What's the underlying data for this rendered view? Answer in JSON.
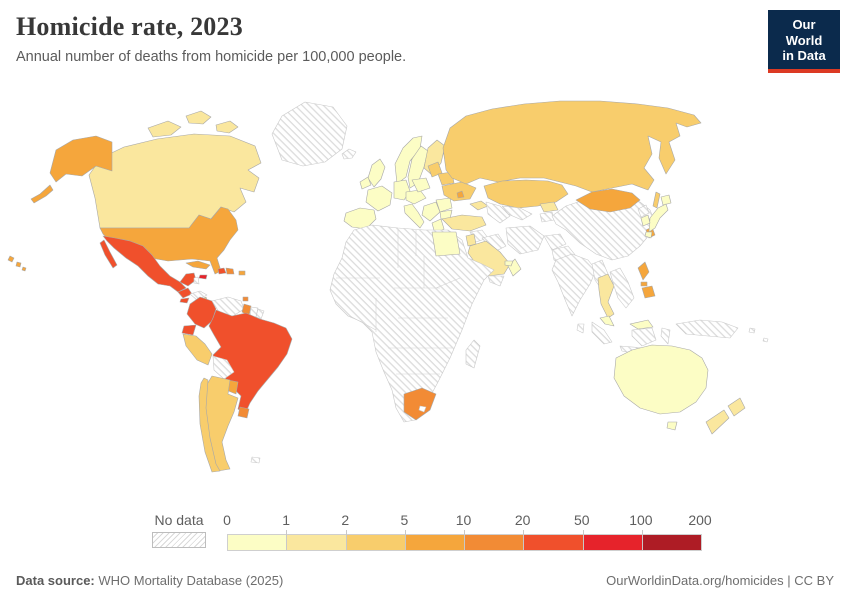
{
  "header": {
    "title": "Homicide rate, 2023",
    "subtitle": "Annual number of deaths from homicide per 100,000 people."
  },
  "logo": {
    "line1": "Our World",
    "line2": "in Data",
    "background": "#0b2a4c",
    "accent": "#dc3a23"
  },
  "legend": {
    "no_data_label": "No data",
    "ticks": [
      "0",
      "1",
      "2",
      "5",
      "10",
      "20",
      "50",
      "100",
      "200"
    ]
  },
  "footer": {
    "source_label": "Data source:",
    "source_text": " WHO Mortality Database (2025)",
    "credit": "OurWorldinData.org/homicides | CC BY"
  },
  "chart_data": {
    "type": "heatmap",
    "map_type": "world-choropleth",
    "title": "Homicide rate, 2023",
    "subtitle": "Annual number of deaths from homicide per 100,000 people.",
    "unit": "deaths per 100,000 people",
    "scale_ticks": [
      0,
      1,
      2,
      5,
      10,
      20,
      50,
      100,
      200
    ],
    "bins": [
      {
        "label": "0-1",
        "color": "#FCFDC5"
      },
      {
        "label": "1-2",
        "color": "#FAE79E"
      },
      {
        "label": "2-5",
        "color": "#F8CD6C"
      },
      {
        "label": "5-10",
        "color": "#F5A63C"
      },
      {
        "label": "10-20",
        "color": "#F28B35"
      },
      {
        "label": "20-50",
        "color": "#F0502C"
      },
      {
        "label": "50-100",
        "color": "#E6232B"
      },
      {
        "label": "100-200",
        "color": "#AE1C25"
      }
    ],
    "no_data_color": "hatched",
    "countries": {
      "canada": "1-2",
      "greenland": "no-data",
      "iceland": "no-data",
      "usa": "5-10",
      "mexico": "20-50",
      "belize": "no-data",
      "guatemala": "20-50",
      "el-salvador": "20-50",
      "honduras": "no-data",
      "nicaragua": "2-5",
      "costa-rica": "5-10",
      "panama": "10-20",
      "cuba": "5-10",
      "jamaica": "50-100",
      "haiti": "20-50",
      "dominican-republic": "10-20",
      "puerto-rico": "5-10",
      "trinidad-and-tobago": "10-20",
      "colombia": "20-50",
      "venezuela": "no-data",
      "guyana": "10-20",
      "suriname": "no-data",
      "french-guiana": "no-data",
      "ecuador": "20-50",
      "peru": "2-5",
      "brazil": "20-50",
      "bolivia": "no-data",
      "paraguay": "5-10",
      "uruguay": "10-20",
      "argentina": "2-5",
      "chile": "2-5",
      "falkland-islands": "no-data",
      "united-kingdom": "0-1",
      "ireland": "0-1",
      "norway": "0-1",
      "sweden": "0-1",
      "finland": "1-2",
      "denmark": "0-1",
      "spain": "0-1",
      "france": "0-1",
      "germany": "0-1",
      "central-europe": "0-1",
      "italy": "0-1",
      "poland": "0-1",
      "balkans": "0-1",
      "greece": "0-1",
      "romania": "0-1",
      "bulgaria": "0-1",
      "baltic-states": "2-5",
      "belarus": "2-5",
      "ukraine": "2-5",
      "moldova": "5-10",
      "turkey": "1-2",
      "caucasus": "1-2",
      "russia": "2-5",
      "kazakhstan": "2-5",
      "uzbekistan": "no-data",
      "turkmenistan": "no-data",
      "kyrgyzstan": "1-2",
      "tajikistan": "no-data",
      "syria": "no-data",
      "iraq": "no-data",
      "iran": "no-data",
      "afghanistan": "no-data",
      "pakistan": "no-data",
      "jordan-israel": "1-2",
      "saudi-arabia": "1-2",
      "yemen": "no-data",
      "oman": "0-1",
      "united-arab-emirates": "0-1",
      "africa-mainland": "no-data",
      "egypt": "0-1",
      "south-africa": "10-20",
      "madagascar": "no-data",
      "india": "no-data",
      "sri-lanka": "no-data",
      "china": "no-data",
      "mongolia": "5-10",
      "myanmar": "no-data",
      "thailand": "1-2",
      "indochina": "no-data",
      "malaysia": "0-1",
      "indonesia": "no-data",
      "new-guinea": "no-data",
      "philippines": "5-10",
      "taiwan": "5-10",
      "japan": "0-1",
      "south-korea": "0-1",
      "north-korea": "no-data",
      "australia": "0-1",
      "new-zealand": "1-2",
      "pacific-islands": "no-data"
    }
  }
}
